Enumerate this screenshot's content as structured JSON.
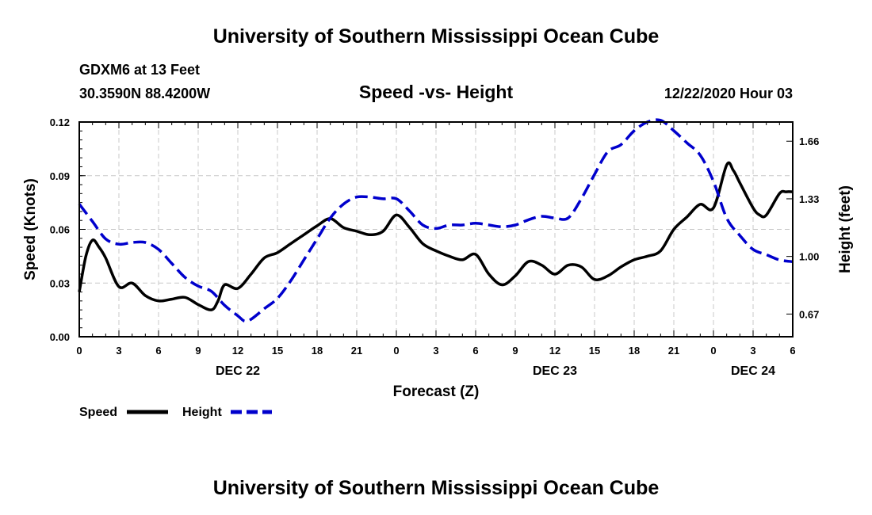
{
  "header": {
    "title": "University of Southern Mississippi Ocean Cube",
    "station": "GDXM6 at 13 Feet",
    "coords": "30.3590N 88.4200W",
    "chart_title": "Speed -vs- Height",
    "datetime": "12/22/2020 Hour 03"
  },
  "footer": {
    "title": "University of Southern Mississippi Ocean Cube"
  },
  "legend": {
    "speed_label": "Speed",
    "height_label": "Height"
  },
  "colors": {
    "speed": "#000000",
    "height": "#0000cc",
    "grid": "#c8c8c8"
  },
  "chart_data": {
    "type": "line",
    "title": "Speed -vs- Height",
    "xlabel": "Forecast (Z)",
    "ylabel_left": "Speed (Knots)",
    "ylabel_right": "Height (feet)",
    "xlim": [
      0,
      54
    ],
    "ylim_left": [
      0,
      0.12
    ],
    "ylim_right": [
      0.54,
      1.77
    ],
    "x_ticks": [
      0,
      3,
      6,
      9,
      12,
      15,
      18,
      21,
      24,
      27,
      30,
      33,
      36,
      39,
      42,
      45,
      48,
      51,
      54
    ],
    "x_tick_labels": [
      "0",
      "3",
      "6",
      "9",
      "12",
      "15",
      "18",
      "21",
      "0",
      "3",
      "6",
      "9",
      "12",
      "15",
      "18",
      "21",
      "0",
      "3",
      "6"
    ],
    "date_labels": [
      {
        "x": 12,
        "label": "DEC 22"
      },
      {
        "x": 36,
        "label": "DEC 23"
      },
      {
        "x": 51,
        "label": "DEC 24"
      }
    ],
    "y_left_ticks": [
      0,
      0.03,
      0.06,
      0.09,
      0.12
    ],
    "y_left_tick_labels": [
      "0.00",
      "0.03",
      "0.06",
      "0.09",
      "0.12"
    ],
    "y_right_ticks": [
      0.67,
      1.0,
      1.33,
      1.66
    ],
    "y_right_tick_labels": [
      "0.67",
      "1.00",
      "1.33",
      "1.66"
    ],
    "grid": true,
    "series": [
      {
        "name": "Speed",
        "axis": "left",
        "style": "solid",
        "x": [
          0,
          0.5,
          1,
          1.5,
          2,
          3,
          4,
          5,
          6,
          7,
          8,
          9,
          10,
          10.5,
          11,
          12,
          13,
          14,
          15,
          16,
          17,
          18,
          19,
          20,
          21,
          22,
          23,
          24,
          25,
          26,
          27,
          28,
          29,
          30,
          31,
          32,
          33,
          34,
          35,
          36,
          37,
          38,
          39,
          40,
          41,
          42,
          43,
          44,
          45,
          46,
          47,
          48,
          49,
          49.5,
          50,
          51,
          51.5,
          52,
          53,
          53.5,
          54
        ],
        "values": [
          0.025,
          0.045,
          0.054,
          0.05,
          0.044,
          0.028,
          0.03,
          0.023,
          0.02,
          0.021,
          0.022,
          0.018,
          0.015,
          0.02,
          0.029,
          0.027,
          0.035,
          0.044,
          0.047,
          0.052,
          0.057,
          0.062,
          0.066,
          0.061,
          0.059,
          0.057,
          0.059,
          0.068,
          0.061,
          0.052,
          0.048,
          0.045,
          0.043,
          0.046,
          0.035,
          0.029,
          0.034,
          0.042,
          0.04,
          0.035,
          0.04,
          0.039,
          0.032,
          0.034,
          0.039,
          0.043,
          0.045,
          0.048,
          0.06,
          0.067,
          0.074,
          0.072,
          0.096,
          0.093,
          0.086,
          0.072,
          0.068,
          0.068,
          0.08,
          0.081,
          0.081
        ]
      },
      {
        "name": "Height",
        "axis": "right",
        "style": "dashed",
        "x": [
          0,
          1,
          2,
          3,
          4,
          5,
          6,
          7,
          8,
          9,
          10,
          11,
          12,
          12.5,
          13,
          14,
          15,
          16,
          17,
          18,
          19,
          20,
          21,
          22,
          23,
          24,
          25,
          26,
          27,
          28,
          29,
          30,
          31,
          32,
          33,
          34,
          35,
          36,
          37,
          38,
          39,
          40,
          41,
          42,
          43,
          44,
          45,
          46,
          47,
          48,
          49,
          50,
          51,
          52,
          53,
          54
        ],
        "values": [
          1.3,
          1.2,
          1.1,
          1.07,
          1.08,
          1.08,
          1.04,
          0.96,
          0.88,
          0.83,
          0.8,
          0.72,
          0.66,
          0.63,
          0.64,
          0.7,
          0.76,
          0.86,
          0.98,
          1.1,
          1.22,
          1.3,
          1.34,
          1.34,
          1.33,
          1.33,
          1.26,
          1.18,
          1.16,
          1.18,
          1.18,
          1.19,
          1.18,
          1.17,
          1.18,
          1.21,
          1.23,
          1.22,
          1.22,
          1.33,
          1.47,
          1.6,
          1.64,
          1.72,
          1.77,
          1.78,
          1.72,
          1.65,
          1.58,
          1.43,
          1.22,
          1.12,
          1.04,
          1.01,
          0.98,
          0.97
        ]
      }
    ]
  }
}
